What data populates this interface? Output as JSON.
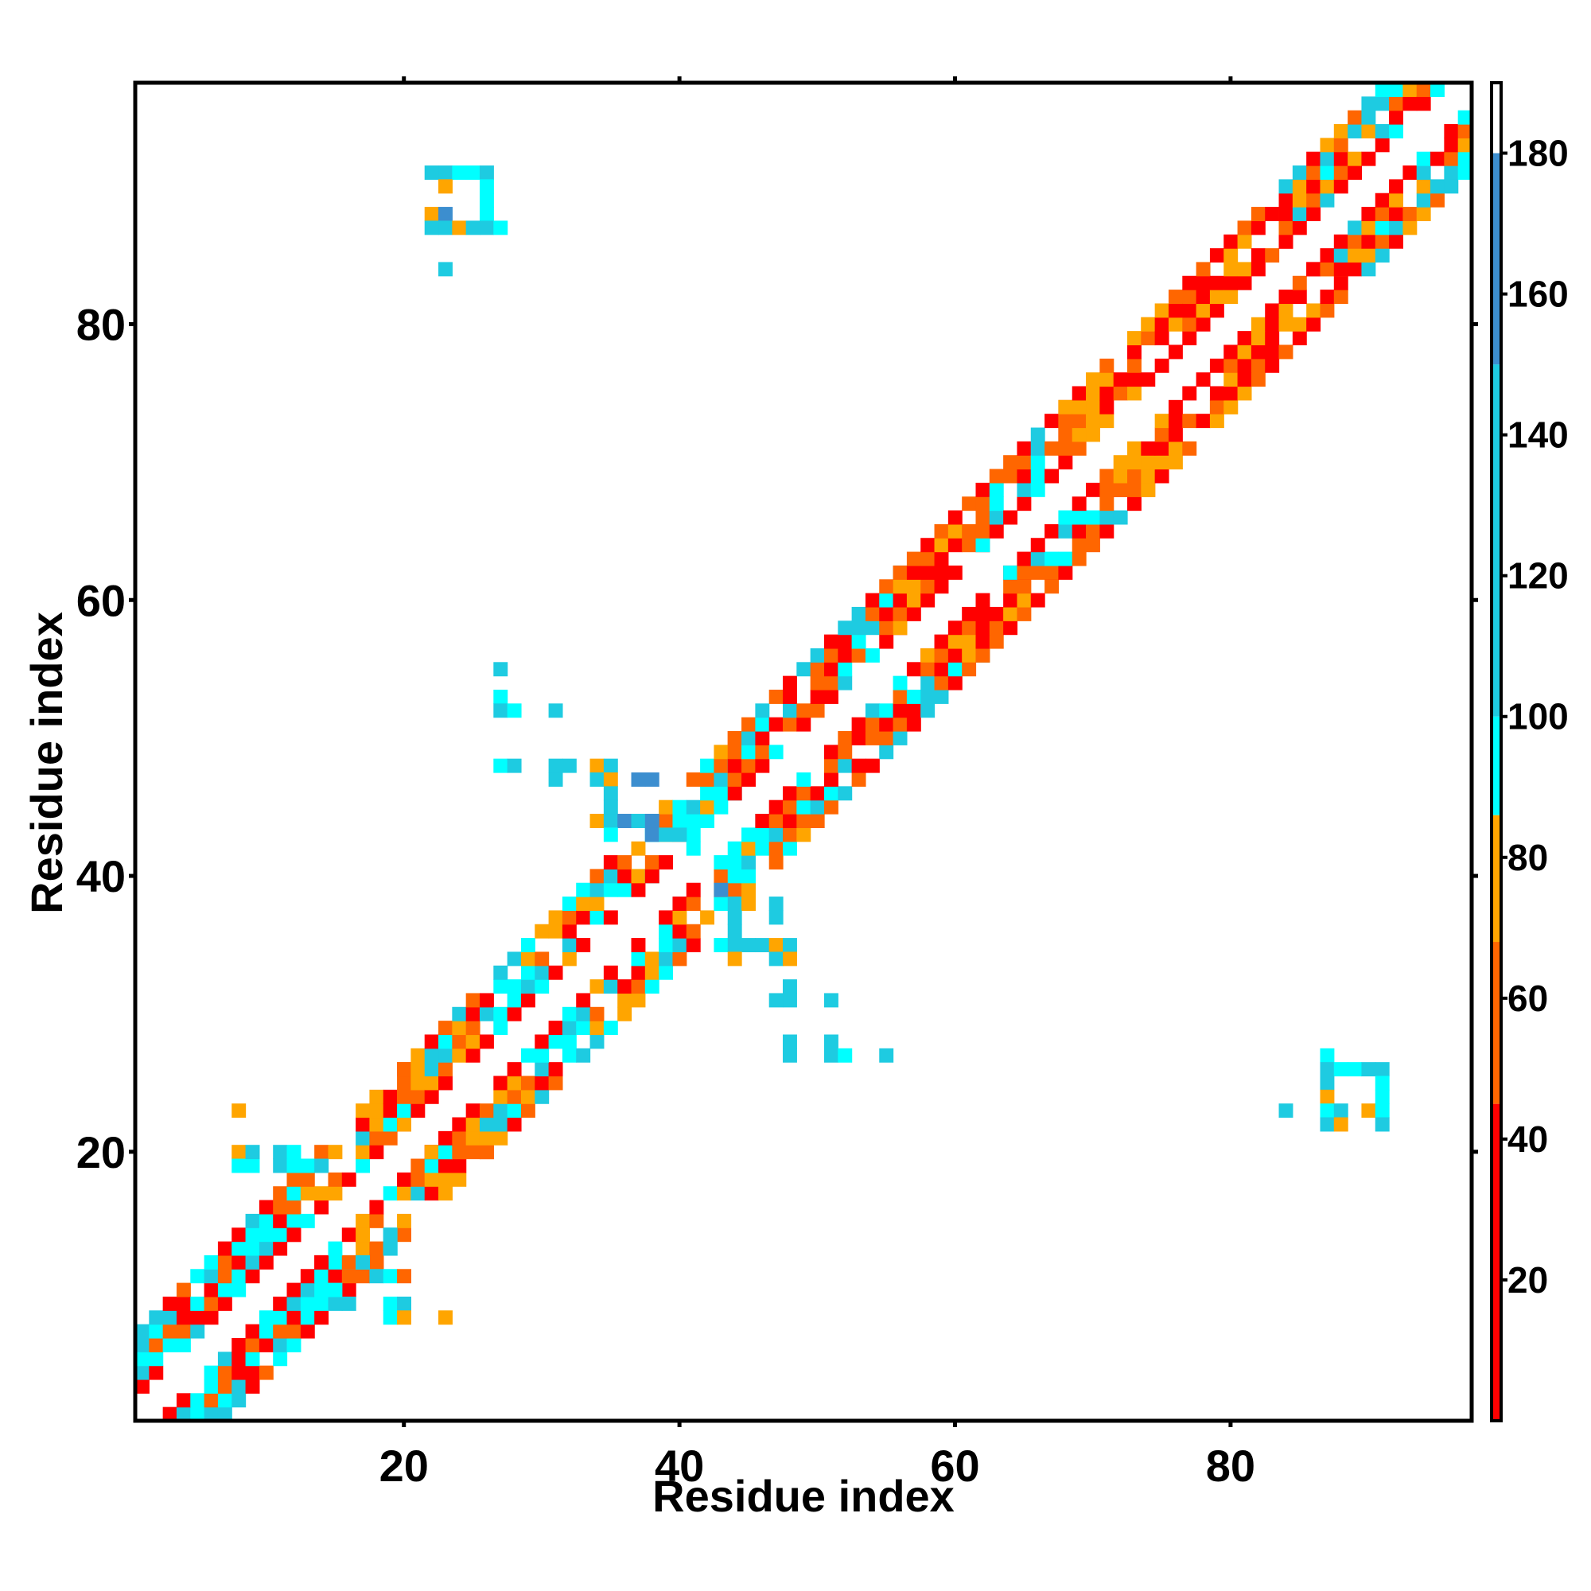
{
  "chart_data": {
    "type": "heatmap",
    "title": "",
    "xlabel": "Residue index",
    "ylabel": "Residue index",
    "n_residues": 97,
    "xlim": [
      0.5,
      97.5
    ],
    "ylim": [
      0.5,
      97.5
    ],
    "x_ticks": [
      20,
      40,
      60,
      80
    ],
    "y_ticks": [
      20,
      40,
      60,
      80
    ],
    "x_tick_labels": [
      "20",
      "40",
      "60",
      "80"
    ],
    "y_tick_labels": [
      "20",
      "40",
      "60",
      "80"
    ],
    "grid": false,
    "colorbar": {
      "position": "right",
      "range": [
        0,
        190
      ],
      "ticks": [
        20,
        40,
        60,
        80,
        100,
        120,
        140,
        160,
        180
      ],
      "tick_labels": [
        "20",
        "40",
        "60",
        "80",
        "100",
        "120",
        "140",
        "160",
        "180"
      ],
      "bands": [
        {
          "from": 0,
          "to": 45,
          "color": "#ff0000"
        },
        {
          "from": 45,
          "to": 68,
          "color": "#ff6600"
        },
        {
          "from": 68,
          "to": 86,
          "color": "#ffa500"
        },
        {
          "from": 86,
          "to": 100,
          "color": "#00ffff"
        },
        {
          "from": 100,
          "to": 150,
          "color": "#1ecbe1"
        },
        {
          "from": 150,
          "to": 180,
          "color": "#3c8ecf"
        },
        {
          "from": 180,
          "to": 190,
          "color": "#ffffff"
        }
      ]
    },
    "band_segments": [
      {
        "from": 1,
        "to": 12,
        "colors": [
          "#00ffff",
          "#ff6600",
          "#ff0000",
          "#00ffff",
          "#1ecbe1"
        ]
      },
      {
        "from": 12,
        "to": 20,
        "colors": [
          "#ff0000",
          "#ffa500",
          "#ff6600",
          "#00ffff",
          "#1ecbe1"
        ]
      },
      {
        "from": 20,
        "to": 38,
        "colors": [
          "#ff0000",
          "#ff6600",
          "#00ffff",
          "#1ecbe1",
          "#ffa500"
        ]
      },
      {
        "from": 38,
        "to": 44,
        "colors": [
          "#ffa500",
          "#00ffff",
          "#1ecbe1",
          "#ff6600"
        ]
      },
      {
        "from": 44,
        "to": 56,
        "colors": [
          "#ff0000",
          "#ff6600",
          "#00ffff",
          "#1ecbe1"
        ]
      },
      {
        "from": 56,
        "to": 62,
        "colors": [
          "#ffa500",
          "#ff6600",
          "#ff0000"
        ]
      },
      {
        "from": 62,
        "to": 68,
        "colors": [
          "#ff0000",
          "#ff6600",
          "#1ecbe1",
          "#00ffff"
        ]
      },
      {
        "from": 68,
        "to": 74,
        "colors": [
          "#ffa500",
          "#ff6600",
          "#ff0000"
        ]
      },
      {
        "from": 74,
        "to": 84,
        "colors": [
          "#ff0000",
          "#ff6600",
          "#ffa500"
        ]
      },
      {
        "from": 84,
        "to": 97,
        "colors": [
          "#ff0000",
          "#ff6600",
          "#00ffff",
          "#1ecbe1",
          "#ffa500"
        ]
      }
    ],
    "off_diagonal_contacts": [
      {
        "x": 8,
        "y": 23,
        "color": "#ffa500"
      },
      {
        "x": 8,
        "y": 20,
        "color": "#ffa500"
      },
      {
        "x": 8,
        "y": 19,
        "color": "#00ffff"
      },
      {
        "x": 9,
        "y": 19,
        "color": "#00ffff"
      },
      {
        "x": 9,
        "y": 20,
        "color": "#1ecbe1"
      },
      {
        "x": 11,
        "y": 20,
        "color": "#1ecbe1"
      },
      {
        "x": 12,
        "y": 20,
        "color": "#00ffff"
      },
      {
        "x": 11,
        "y": 19,
        "color": "#1ecbe1"
      },
      {
        "x": 12,
        "y": 19,
        "color": "#00ffff"
      },
      {
        "x": 13,
        "y": 19,
        "color": "#00ffff"
      },
      {
        "x": 14,
        "y": 19,
        "color": "#1ecbe1"
      },
      {
        "x": 17,
        "y": 12,
        "color": "#1ecbe1"
      },
      {
        "x": 18,
        "y": 11,
        "color": "#1ecbe1"
      },
      {
        "x": 19,
        "y": 11,
        "color": "#00ffff"
      },
      {
        "x": 20,
        "y": 11,
        "color": "#ff6600"
      },
      {
        "x": 15,
        "y": 10,
        "color": "#00ffff"
      },
      {
        "x": 16,
        "y": 9,
        "color": "#1ecbe1"
      },
      {
        "x": 19,
        "y": 9,
        "color": "#00ffff"
      },
      {
        "x": 20,
        "y": 9,
        "color": "#1ecbe1"
      },
      {
        "x": 19,
        "y": 8,
        "color": "#00ffff"
      },
      {
        "x": 20,
        "y": 8,
        "color": "#ffa500"
      },
      {
        "x": 23,
        "y": 8,
        "color": "#ffa500"
      },
      {
        "x": 19,
        "y": 13,
        "color": "#1ecbe1"
      },
      {
        "x": 19,
        "y": 14,
        "color": "#1ecbe1"
      },
      {
        "x": 22,
        "y": 91,
        "color": "#1ecbe1"
      },
      {
        "x": 23,
        "y": 91,
        "color": "#1ecbe1"
      },
      {
        "x": 24,
        "y": 91,
        "color": "#00ffff"
      },
      {
        "x": 25,
        "y": 91,
        "color": "#00ffff"
      },
      {
        "x": 26,
        "y": 91,
        "color": "#1ecbe1"
      },
      {
        "x": 23,
        "y": 90,
        "color": "#ffa500"
      },
      {
        "x": 26,
        "y": 90,
        "color": "#00ffff"
      },
      {
        "x": 26,
        "y": 89,
        "color": "#00ffff"
      },
      {
        "x": 22,
        "y": 88,
        "color": "#ffa500"
      },
      {
        "x": 23,
        "y": 88,
        "color": "#3c8ecf"
      },
      {
        "x": 26,
        "y": 88,
        "color": "#00ffff"
      },
      {
        "x": 22,
        "y": 87,
        "color": "#1ecbe1"
      },
      {
        "x": 23,
        "y": 87,
        "color": "#1ecbe1"
      },
      {
        "x": 24,
        "y": 87,
        "color": "#ffa500"
      },
      {
        "x": 25,
        "y": 87,
        "color": "#1ecbe1"
      },
      {
        "x": 26,
        "y": 87,
        "color": "#1ecbe1"
      },
      {
        "x": 27,
        "y": 87,
        "color": "#00ffff"
      },
      {
        "x": 23,
        "y": 84,
        "color": "#1ecbe1"
      },
      {
        "x": 27,
        "y": 55,
        "color": "#1ecbe1"
      },
      {
        "x": 27,
        "y": 53,
        "color": "#00ffff"
      },
      {
        "x": 27,
        "y": 52,
        "color": "#1ecbe1"
      },
      {
        "x": 28,
        "y": 52,
        "color": "#00ffff"
      },
      {
        "x": 31,
        "y": 52,
        "color": "#1ecbe1"
      },
      {
        "x": 27,
        "y": 48,
        "color": "#00ffff"
      },
      {
        "x": 28,
        "y": 48,
        "color": "#1ecbe1"
      },
      {
        "x": 31,
        "y": 48,
        "color": "#1ecbe1"
      },
      {
        "x": 32,
        "y": 48,
        "color": "#1ecbe1"
      },
      {
        "x": 34,
        "y": 48,
        "color": "#ffa500"
      },
      {
        "x": 35,
        "y": 48,
        "color": "#1ecbe1"
      },
      {
        "x": 31,
        "y": 47,
        "color": "#1ecbe1"
      },
      {
        "x": 34,
        "y": 47,
        "color": "#1ecbe1"
      },
      {
        "x": 35,
        "y": 47,
        "color": "#ffa500"
      },
      {
        "x": 37,
        "y": 47,
        "color": "#3c8ecf"
      },
      {
        "x": 38,
        "y": 47,
        "color": "#3c8ecf"
      },
      {
        "x": 35,
        "y": 46,
        "color": "#1ecbe1"
      },
      {
        "x": 35,
        "y": 45,
        "color": "#1ecbe1"
      },
      {
        "x": 34,
        "y": 44,
        "color": "#ffa500"
      },
      {
        "x": 35,
        "y": 44,
        "color": "#1ecbe1"
      },
      {
        "x": 36,
        "y": 44,
        "color": "#3c8ecf"
      },
      {
        "x": 37,
        "y": 44,
        "color": "#1ecbe1"
      },
      {
        "x": 38,
        "y": 44,
        "color": "#3c8ecf"
      },
      {
        "x": 35,
        "y": 43,
        "color": "#00ffff"
      },
      {
        "x": 38,
        "y": 43,
        "color": "#3c8ecf"
      },
      {
        "x": 39,
        "y": 43,
        "color": "#1ecbe1"
      },
      {
        "x": 40,
        "y": 43,
        "color": "#1ecbe1"
      },
      {
        "x": 41,
        "y": 42,
        "color": "#00ffff"
      },
      {
        "x": 43,
        "y": 39,
        "color": "#3c8ecf"
      },
      {
        "x": 44,
        "y": 38,
        "color": "#1ecbe1"
      },
      {
        "x": 45,
        "y": 38,
        "color": "#ffa500"
      },
      {
        "x": 47,
        "y": 38,
        "color": "#1ecbe1"
      },
      {
        "x": 44,
        "y": 37,
        "color": "#1ecbe1"
      },
      {
        "x": 47,
        "y": 37,
        "color": "#1ecbe1"
      },
      {
        "x": 44,
        "y": 36,
        "color": "#1ecbe1"
      },
      {
        "x": 43,
        "y": 35,
        "color": "#00ffff"
      },
      {
        "x": 44,
        "y": 35,
        "color": "#1ecbe1"
      },
      {
        "x": 45,
        "y": 35,
        "color": "#1ecbe1"
      },
      {
        "x": 46,
        "y": 35,
        "color": "#1ecbe1"
      },
      {
        "x": 47,
        "y": 35,
        "color": "#ffa500"
      },
      {
        "x": 48,
        "y": 35,
        "color": "#1ecbe1"
      },
      {
        "x": 44,
        "y": 34,
        "color": "#ffa500"
      },
      {
        "x": 47,
        "y": 34,
        "color": "#1ecbe1"
      },
      {
        "x": 48,
        "y": 34,
        "color": "#ffa500"
      },
      {
        "x": 48,
        "y": 32,
        "color": "#1ecbe1"
      },
      {
        "x": 47,
        "y": 31,
        "color": "#1ecbe1"
      },
      {
        "x": 48,
        "y": 31,
        "color": "#1ecbe1"
      },
      {
        "x": 51,
        "y": 31,
        "color": "#1ecbe1"
      },
      {
        "x": 48,
        "y": 28,
        "color": "#1ecbe1"
      },
      {
        "x": 51,
        "y": 28,
        "color": "#1ecbe1"
      },
      {
        "x": 48,
        "y": 27,
        "color": "#1ecbe1"
      },
      {
        "x": 51,
        "y": 27,
        "color": "#1ecbe1"
      },
      {
        "x": 52,
        "y": 27,
        "color": "#00ffff"
      },
      {
        "x": 55,
        "y": 27,
        "color": "#1ecbe1"
      },
      {
        "x": 87,
        "y": 27,
        "color": "#00ffff"
      },
      {
        "x": 87,
        "y": 26,
        "color": "#1ecbe1"
      },
      {
        "x": 88,
        "y": 26,
        "color": "#00ffff"
      },
      {
        "x": 89,
        "y": 26,
        "color": "#00ffff"
      },
      {
        "x": 90,
        "y": 26,
        "color": "#1ecbe1"
      },
      {
        "x": 91,
        "y": 26,
        "color": "#1ecbe1"
      },
      {
        "x": 87,
        "y": 25,
        "color": "#1ecbe1"
      },
      {
        "x": 91,
        "y": 25,
        "color": "#00ffff"
      },
      {
        "x": 87,
        "y": 24,
        "color": "#ffa500"
      },
      {
        "x": 91,
        "y": 24,
        "color": "#00ffff"
      },
      {
        "x": 84,
        "y": 23,
        "color": "#1ecbe1"
      },
      {
        "x": 87,
        "y": 23,
        "color": "#00ffff"
      },
      {
        "x": 88,
        "y": 23,
        "color": "#1ecbe1"
      },
      {
        "x": 90,
        "y": 23,
        "color": "#ffa500"
      },
      {
        "x": 91,
        "y": 23,
        "color": "#00ffff"
      },
      {
        "x": 87,
        "y": 22,
        "color": "#1ecbe1"
      },
      {
        "x": 88,
        "y": 22,
        "color": "#ffa500"
      },
      {
        "x": 91,
        "y": 22,
        "color": "#1ecbe1"
      }
    ]
  }
}
